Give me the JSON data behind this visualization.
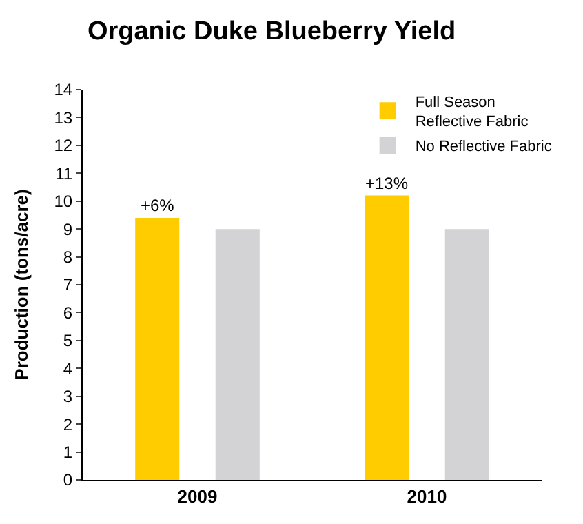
{
  "chart_data": {
    "type": "bar",
    "title": "Organic Duke Blueberry Yield",
    "ylabel": "Production (tons/acre)",
    "categories": [
      "2009",
      "2010"
    ],
    "series": [
      {
        "name": "Full Season Reflective Fabric",
        "color": "#ffcc00",
        "values": [
          9.4,
          10.2
        ]
      },
      {
        "name": "No Reflective Fabric",
        "color": "#d3d3d5",
        "values": [
          9.0,
          9.0
        ]
      }
    ],
    "ylim": [
      0,
      14
    ],
    "yticks": [
      0,
      1,
      2,
      3,
      4,
      5,
      6,
      7,
      8,
      9,
      10,
      11,
      12,
      13,
      14
    ],
    "annotations": [
      "+6%",
      "+13%"
    ],
    "legend": "top right"
  }
}
